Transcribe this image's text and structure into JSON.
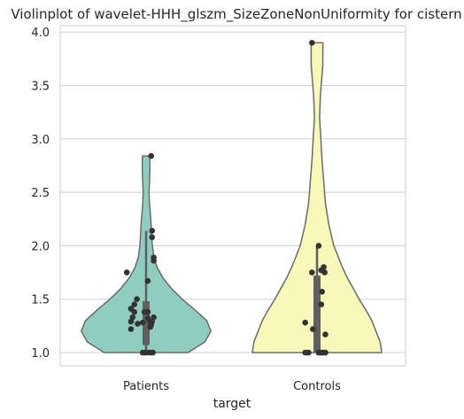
{
  "chart_data": {
    "type": "violin",
    "title": "Violinplot of wavelet-HHH_glszm_SizeZoneNonUniformity for cistern",
    "xlabel": "target",
    "ylabel": "",
    "categories": [
      "Patients",
      "Controls"
    ],
    "ylim": [
      0.92,
      4.05
    ],
    "yticks": [
      "1.0",
      "1.5",
      "2.0",
      "2.5",
      "3.0",
      "3.5",
      "4.0"
    ],
    "grid": true,
    "colors": {
      "Patients": "#8ecdc0",
      "Controls": "#f8f8b8",
      "outline": "#6b6b6b",
      "box": "#5f5f5f",
      "points": "#333333",
      "grid": "#d0d0d0",
      "frame": "#cccccc"
    },
    "violins": [
      {
        "name": "Patients",
        "profile": [
          [
            1.0,
            0.5
          ],
          [
            1.1,
            0.7
          ],
          [
            1.2,
            0.77
          ],
          [
            1.3,
            0.72
          ],
          [
            1.4,
            0.58
          ],
          [
            1.5,
            0.43
          ],
          [
            1.6,
            0.3
          ],
          [
            1.7,
            0.2
          ],
          [
            1.8,
            0.13
          ],
          [
            1.9,
            0.09
          ],
          [
            2.0,
            0.075
          ],
          [
            2.1,
            0.065
          ],
          [
            2.2,
            0.06
          ],
          [
            2.3,
            0.05
          ],
          [
            2.4,
            0.04
          ],
          [
            2.5,
            0.035
          ],
          [
            2.6,
            0.04
          ],
          [
            2.7,
            0.045
          ],
          [
            2.8,
            0.045
          ],
          [
            2.84,
            0.045
          ]
        ],
        "box": {
          "q1": 1.07,
          "q3": 1.48,
          "whisker_low": 1.0,
          "whisker_high": 2.14
        },
        "points": [
          [
            0.06,
            2.84
          ],
          [
            0.07,
            2.14
          ],
          [
            0.07,
            2.08
          ],
          [
            0.09,
            1.89
          ],
          [
            0.09,
            1.86
          ],
          [
            -0.23,
            1.75
          ],
          [
            0.02,
            1.67
          ],
          [
            -0.11,
            1.5
          ],
          [
            -0.14,
            1.45
          ],
          [
            -0.18,
            1.41
          ],
          [
            -0.14,
            1.38
          ],
          [
            -0.02,
            1.38
          ],
          [
            0.02,
            1.38
          ],
          [
            -0.16,
            1.33
          ],
          [
            0.09,
            1.33
          ],
          [
            0.02,
            1.32
          ],
          [
            -0.18,
            1.29
          ],
          [
            -0.04,
            1.28
          ],
          [
            0.05,
            1.28
          ],
          [
            0.07,
            1.29
          ],
          [
            -0.1,
            1.27
          ],
          [
            0.06,
            1.26
          ],
          [
            -0.18,
            1.22
          ],
          [
            0.05,
            1.24
          ],
          [
            -0.04,
            1.0
          ],
          [
            -0.02,
            1.0
          ],
          [
            0.0,
            1.0
          ],
          [
            0.04,
            1.0
          ],
          [
            0.06,
            1.0
          ],
          [
            0.08,
            1.0
          ]
        ]
      },
      {
        "name": "Controls",
        "profile": [
          [
            1.0,
            0.77
          ],
          [
            1.1,
            0.75
          ],
          [
            1.2,
            0.7
          ],
          [
            1.3,
            0.65
          ],
          [
            1.4,
            0.58
          ],
          [
            1.5,
            0.5
          ],
          [
            1.6,
            0.43
          ],
          [
            1.7,
            0.36
          ],
          [
            1.8,
            0.3
          ],
          [
            1.9,
            0.25
          ],
          [
            2.0,
            0.2
          ],
          [
            2.2,
            0.14
          ],
          [
            2.4,
            0.1
          ],
          [
            2.6,
            0.08
          ],
          [
            2.8,
            0.06
          ],
          [
            3.0,
            0.045
          ],
          [
            3.2,
            0.03
          ],
          [
            3.4,
            0.04
          ],
          [
            3.6,
            0.06
          ],
          [
            3.7,
            0.07
          ],
          [
            3.8,
            0.07
          ],
          [
            3.9,
            0.07
          ]
        ],
        "box": {
          "q1": 1.0,
          "q3": 1.72,
          "whisker_low": 1.0,
          "whisker_high": 2.0
        },
        "points": [
          [
            -0.06,
            3.9
          ],
          [
            0.02,
            2.0
          ],
          [
            0.08,
            1.8
          ],
          [
            0.05,
            1.77
          ],
          [
            -0.06,
            1.75
          ],
          [
            0.09,
            1.75
          ],
          [
            0.06,
            1.57
          ],
          [
            0.05,
            1.45
          ],
          [
            -0.14,
            1.28
          ],
          [
            -0.05,
            1.22
          ],
          [
            0.1,
            1.17
          ],
          [
            -0.14,
            1.0
          ],
          [
            -0.12,
            1.0
          ],
          [
            -0.1,
            1.0
          ],
          [
            0.02,
            1.0
          ],
          [
            0.04,
            1.0
          ],
          [
            0.06,
            1.0
          ],
          [
            0.08,
            1.0
          ],
          [
            0.1,
            1.0
          ]
        ]
      }
    ]
  }
}
